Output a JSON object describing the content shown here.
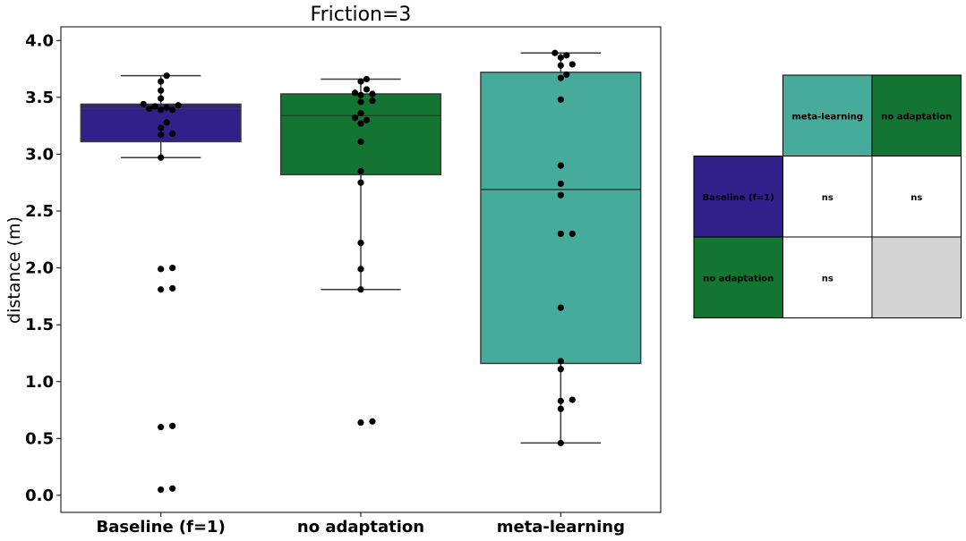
{
  "chart_data": {
    "type": "box",
    "title": "Friction=3",
    "ylabel": "distance (m)",
    "xlabel": "",
    "ylim": [
      -0.15,
      4.12
    ],
    "yticks": [
      "0.0",
      "0.5",
      "1.0",
      "1.5",
      "2.0",
      "2.5",
      "3.0",
      "3.5",
      "4.0"
    ],
    "grid": false,
    "categories": [
      "Baseline (f=1)",
      "no adaptation",
      "meta-learning"
    ],
    "colors": [
      "#31208a",
      "#147532",
      "#46ab9a"
    ],
    "boxes": [
      {
        "q1": 3.11,
        "median": 3.4,
        "q3": 3.44,
        "whisker_low": 2.97,
        "whisker_high": 3.69
      },
      {
        "q1": 2.82,
        "median": 3.34,
        "q3": 3.53,
        "whisker_low": 1.81,
        "whisker_high": 3.66
      },
      {
        "q1": 1.16,
        "median": 2.69,
        "q3": 3.72,
        "whisker_low": 0.46,
        "whisker_high": 3.89
      }
    ],
    "points": [
      [
        3.69,
        3.64,
        3.56,
        3.49,
        3.44,
        3.43,
        3.42,
        3.41,
        3.4,
        3.39,
        3.39,
        3.28,
        3.23,
        3.18,
        3.17,
        2.97,
        2.0,
        1.99,
        1.82,
        1.81,
        0.61,
        0.6,
        0.06,
        0.05
      ],
      [
        3.66,
        3.64,
        3.57,
        3.54,
        3.53,
        3.52,
        3.47,
        3.46,
        3.36,
        3.32,
        3.3,
        3.27,
        3.11,
        2.85,
        2.75,
        2.22,
        1.99,
        1.81,
        0.65,
        0.64
      ],
      [
        3.89,
        3.87,
        3.85,
        3.79,
        3.78,
        3.7,
        3.67,
        3.48,
        2.9,
        2.74,
        2.64,
        2.3,
        2.3,
        1.65,
        1.18,
        1.11,
        0.84,
        0.83,
        0.76,
        0.46
      ]
    ]
  },
  "significance_table": {
    "col_headers": [
      "meta-learning",
      "no adaptation"
    ],
    "col_colors": [
      "#46ab9a",
      "#147532"
    ],
    "rows": [
      {
        "label": "Baseline (f=1)",
        "color": "#31208a",
        "cells": [
          "ns",
          "ns"
        ]
      },
      {
        "label": "no adaptation",
        "color": "#147532",
        "cells": [
          "ns",
          ""
        ]
      }
    ],
    "empty_cell_color": "#d3d3d3"
  }
}
